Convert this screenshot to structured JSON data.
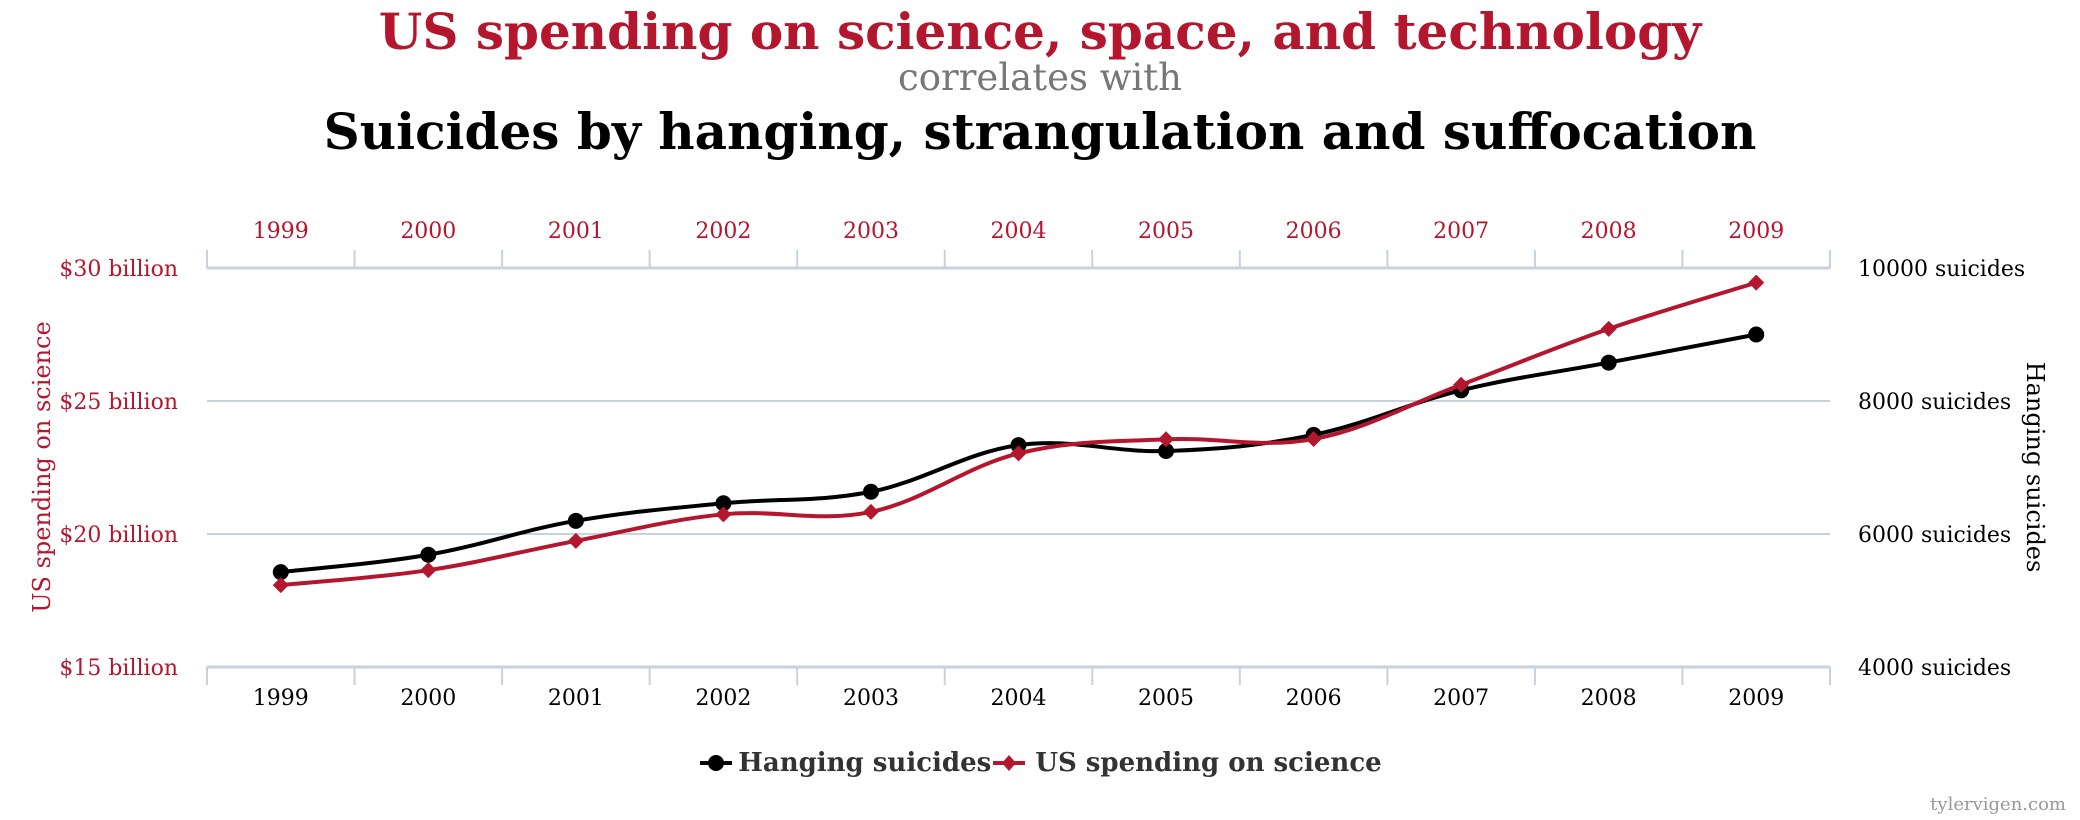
{
  "titles": {
    "series_a": "US spending on science, space, and technology",
    "connector": "correlates with",
    "series_b": "Suicides by hanging, strangulation and suffocation"
  },
  "colors": {
    "spending": "#b4162e",
    "hanging": "#000000",
    "grid": "#c8d2dc"
  },
  "watermark": "tylervigen.com",
  "chart_data": {
    "type": "line",
    "title": "US spending on science, space, and technology correlates with Suicides by hanging, strangulation and suffocation",
    "categories": [
      "1999",
      "2000",
      "2001",
      "2002",
      "2003",
      "2004",
      "2005",
      "2006",
      "2007",
      "2008",
      "2009"
    ],
    "x_top_ticks": [
      "1999",
      "2000",
      "2001",
      "2002",
      "2003",
      "2004",
      "2005",
      "2006",
      "2007",
      "2008",
      "2009"
    ],
    "x_bottom_ticks": [
      "1999",
      "2000",
      "2001",
      "2002",
      "2003",
      "2004",
      "2005",
      "2006",
      "2007",
      "2008",
      "2009"
    ],
    "left_axis": {
      "label": "US spending on science",
      "ticks": [
        "$15 billion",
        "$20 billion",
        "$25 billion",
        "$30 billion"
      ],
      "tick_values": [
        15,
        20,
        25,
        30
      ],
      "range": [
        15,
        30
      ]
    },
    "right_axis": {
      "label": "Hanging suicides",
      "ticks": [
        "4000 suicides",
        "6000 suicides",
        "8000 suicides",
        "10000 suicides"
      ],
      "tick_values": [
        4000,
        6000,
        8000,
        10000
      ],
      "range": [
        4000,
        10000
      ]
    },
    "grid": true,
    "legend_position": "bottom-center",
    "series": [
      {
        "name": "Hanging suicides",
        "axis": "right",
        "marker": "circle",
        "color": "#000000",
        "values": [
          5427,
          5688,
          6198,
          6462,
          6635,
          7336,
          7248,
          7491,
          8161,
          8578,
          9000
        ]
      },
      {
        "name": "US spending on science",
        "axis": "left",
        "marker": "diamond",
        "color": "#b4162e",
        "values": [
          18.08,
          18.64,
          19.74,
          20.74,
          20.83,
          23.03,
          23.56,
          23.57,
          25.61,
          27.71,
          29.45
        ]
      }
    ]
  }
}
